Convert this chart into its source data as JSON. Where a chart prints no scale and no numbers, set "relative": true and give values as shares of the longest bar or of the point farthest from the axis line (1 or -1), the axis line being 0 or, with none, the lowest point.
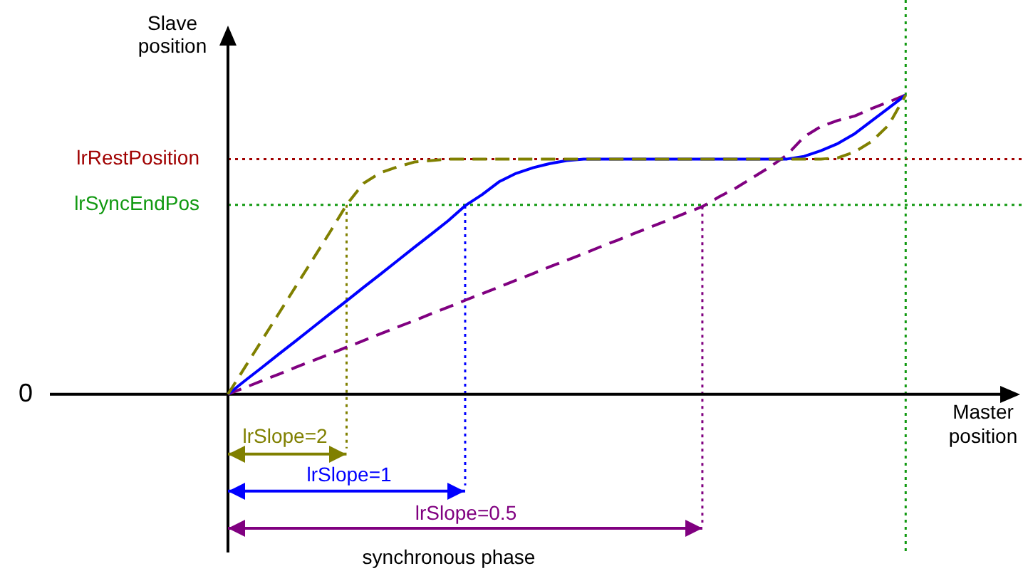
{
  "chart_data": {
    "type": "line",
    "relative": true,
    "xlabel": "Master position",
    "ylabel": "Slave position",
    "categories": [
      null,
      null,
      null,
      null,
      null,
      null,
      null,
      null,
      null,
      null,
      null,
      null,
      null,
      null,
      null,
      null,
      null,
      null,
      null,
      null,
      null,
      null,
      null,
      null,
      null,
      null,
      null,
      null,
      null,
      null,
      null,
      null,
      null,
      null,
      null,
      null,
      null,
      null,
      null,
      null,
      null,
      null,
      null,
      null,
      null,
      null,
      null
    ],
    "series": [
      {
        "color": "#808000",
        "line_style": "dashed",
        "values": [
          0,
          0.09,
          0.18,
          0.27,
          0.36,
          0.45,
          0.54,
          0.633,
          0.705,
          0.74,
          0.76,
          0.776,
          0.781,
          0.786,
          0.786,
          0.786,
          0.786,
          0.786,
          0.786,
          0.786,
          0.786,
          0.786,
          0.786,
          0.786,
          0.786,
          0.786,
          0.786,
          0.786,
          0.786,
          0.786,
          0.786,
          0.786,
          0.786,
          0.786,
          0.786,
          0.786,
          0.79,
          0.81,
          0.845,
          0.9,
          1,
          null,
          null,
          null,
          null,
          null,
          null
        ]
      },
      {
        "color": "#0000ff",
        "line_style": "solid",
        "values": [
          0,
          0.045,
          0.089,
          0.134,
          0.178,
          0.223,
          0.268,
          0.312,
          0.357,
          0.401,
          0.446,
          0.491,
          0.535,
          0.58,
          0.63,
          0.667,
          0.71,
          0.738,
          0.757,
          0.771,
          0.781,
          0.786,
          0.786,
          0.786,
          0.786,
          0.786,
          0.786,
          0.786,
          0.786,
          0.786,
          0.786,
          0.786,
          0.786,
          0.786,
          0.795,
          0.814,
          0.838,
          0.871,
          0.914,
          0.957,
          1,
          null,
          null,
          null,
          null,
          null,
          null
        ]
      },
      {
        "color": "#800080",
        "line_style": "dashed",
        "values": [
          0,
          0.022,
          0.045,
          0.067,
          0.09,
          0.112,
          0.134,
          0.157,
          0.179,
          0.202,
          0.224,
          0.246,
          0.269,
          0.291,
          0.314,
          0.336,
          0.358,
          0.381,
          0.403,
          0.426,
          0.448,
          0.47,
          0.493,
          0.515,
          0.538,
          0.56,
          0.582,
          0.605,
          0.627,
          0.66,
          0.69,
          0.725,
          0.76,
          0.8,
          0.86,
          0.895,
          0.915,
          0.93,
          0.955,
          0.977,
          1,
          null,
          null,
          null,
          null,
          null,
          null
        ]
      },
      {
        "color": "#808000",
        "line_style": "solid",
        "values": [
          -0.2,
          -0.2,
          -0.2,
          -0.2,
          -0.2,
          -0.2,
          -0.2,
          -0.2,
          null,
          null,
          null,
          null,
          null,
          null,
          null,
          null,
          null,
          null,
          null,
          null,
          null,
          null,
          null,
          null,
          null,
          null,
          null,
          null,
          null,
          null,
          null,
          null,
          null,
          null,
          null,
          null,
          null,
          null,
          null,
          null,
          null,
          null,
          null,
          null,
          null,
          null,
          null
        ]
      },
      {
        "color": "#0000ff",
        "line_style": "solid",
        "values": [
          -0.324,
          -0.324,
          -0.324,
          -0.324,
          -0.324,
          -0.324,
          -0.324,
          -0.324,
          -0.324,
          -0.324,
          -0.324,
          -0.324,
          -0.324,
          -0.324,
          -0.324,
          null,
          null,
          null,
          null,
          null,
          null,
          null,
          null,
          null,
          null,
          null,
          null,
          null,
          null,
          null,
          null,
          null,
          null,
          null,
          null,
          null,
          null,
          null,
          null,
          null,
          null,
          null,
          null,
          null,
          null,
          null,
          null
        ]
      },
      {
        "color": "#800080",
        "line_style": "solid",
        "values": [
          -0.448,
          -0.448,
          -0.448,
          -0.448,
          -0.448,
          -0.448,
          -0.448,
          -0.448,
          -0.448,
          -0.448,
          -0.448,
          -0.448,
          -0.448,
          -0.448,
          -0.448,
          -0.448,
          -0.448,
          -0.448,
          -0.448,
          -0.448,
          -0.448,
          -0.448,
          -0.448,
          -0.448,
          -0.448,
          -0.448,
          -0.448,
          -0.448,
          -0.448,
          null,
          null,
          null,
          null,
          null,
          null,
          null,
          null,
          null,
          null,
          null,
          null,
          null,
          null,
          null,
          null,
          null,
          null
        ]
      }
    ],
    "ref_lines": [
      {
        "axis": "y",
        "value": 0.786,
        "label": "lrRestPosition",
        "color": "#a00000",
        "line_style": "dotted"
      },
      {
        "axis": "y",
        "value": 0.633,
        "label": "lrSyncEndPos",
        "color": "#119911",
        "line_style": "dotted"
      }
    ],
    "annotations": [
      "0",
      "lrSlope=2",
      "lrSlope=1",
      "lrSlope=0.5",
      "synchronous phase"
    ],
    "legend": false,
    "marker": "none"
  }
}
